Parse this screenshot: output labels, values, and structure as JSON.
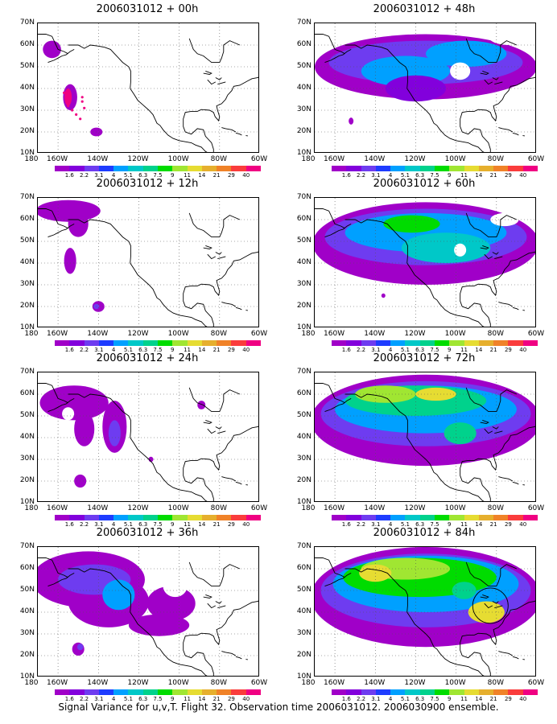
{
  "panels": [
    {
      "title": "2006031012 + 00h"
    },
    {
      "title": "2006031012 + 48h"
    },
    {
      "title": "2006031012 + 12h"
    },
    {
      "title": "2006031012 + 60h"
    },
    {
      "title": "2006031012 + 24h"
    },
    {
      "title": "2006031012 + 72h"
    },
    {
      "title": "2006031012 + 36h"
    },
    {
      "title": "2006031012 + 84h"
    }
  ],
  "lat_labels": [
    "70N",
    "60N",
    "50N",
    "40N",
    "30N",
    "20N",
    "10N"
  ],
  "lon_labels": [
    "180",
    "160W",
    "140W",
    "120W",
    "100W",
    "80W",
    "60W"
  ],
  "colorbar": {
    "labels": [
      "1.6",
      "2.2",
      "3.1",
      "4",
      "5.1",
      "6.3",
      "7.5",
      "9",
      "11",
      "14",
      "21",
      "29",
      "40"
    ],
    "colors": [
      "#a000c8",
      "#8200dc",
      "#6e3cf0",
      "#1e3cff",
      "#00a0ff",
      "#00c8c8",
      "#00d28c",
      "#00dc00",
      "#a0e632",
      "#e6dc32",
      "#e6af2d",
      "#f08228",
      "#fa3c3c",
      "#f00082"
    ]
  },
  "caption": "Signal Variance for u,v,T. Flight 32. Observation time 2006031012. 2006030900 ensemble."
}
